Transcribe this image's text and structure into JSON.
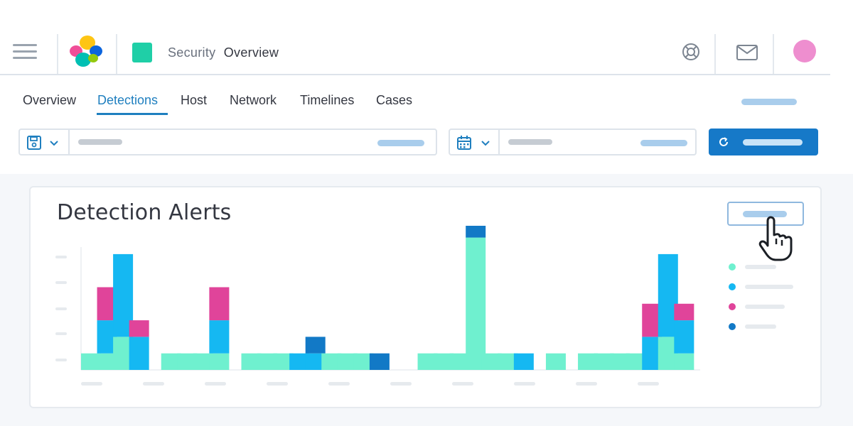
{
  "header": {
    "menu_icon": "hamburger-menu-icon",
    "logo_icon": "elastic-logo-icon",
    "space_color": "#1fcfa7",
    "breadcrumb": {
      "app": "Security",
      "current": "Overview"
    },
    "icons": [
      "help-lifebuoy-icon",
      "mail-icon"
    ],
    "avatar_color": "#ee8ecf"
  },
  "tabs": [
    {
      "label": "Overview",
      "active": false
    },
    {
      "label": "Detections",
      "active": true
    },
    {
      "label": "Host",
      "active": false
    },
    {
      "label": "Network",
      "active": false
    },
    {
      "label": "Timelines",
      "active": false
    },
    {
      "label": "Cases",
      "active": false
    }
  ],
  "search_bar": {
    "left_icon": "saved-query-disk-icon",
    "chevron_icon": "chevron-down-icon"
  },
  "date_picker": {
    "icon": "calendar-icon",
    "chevron_icon": "chevron-down-icon"
  },
  "refresh_button": {
    "icon": "refresh-icon",
    "color": "#1679c8"
  },
  "panel": {
    "title": "Detection Alerts",
    "cursor_icon": "hand-pointer-icon"
  },
  "chart_data": {
    "type": "bar",
    "stacked": true,
    "series_colors": [
      "#6ff0cf",
      "#15b8f2",
      "#e0449a",
      "#1279c6"
    ],
    "stacks": [
      [
        1,
        0,
        0,
        0
      ],
      [
        1,
        2,
        2,
        0
      ],
      [
        2,
        5,
        0,
        0
      ],
      [
        0,
        2,
        1,
        0
      ],
      [
        0,
        0,
        0,
        0
      ],
      [
        1,
        0,
        0,
        0
      ],
      [
        1,
        0,
        0,
        0
      ],
      [
        1,
        0,
        0,
        0
      ],
      [
        1,
        2,
        2,
        0
      ],
      [
        0,
        0,
        0,
        0
      ],
      [
        1,
        0,
        0,
        0
      ],
      [
        1,
        0,
        0,
        0
      ],
      [
        1,
        0,
        0,
        0
      ],
      [
        0,
        1,
        0,
        0
      ],
      [
        0,
        1,
        0,
        1
      ],
      [
        1,
        0,
        0,
        0
      ],
      [
        1,
        0,
        0,
        0
      ],
      [
        1,
        0,
        0,
        0
      ],
      [
        0,
        0,
        0,
        1
      ],
      [
        0,
        0,
        0,
        0
      ],
      [
        0,
        0,
        0,
        0
      ],
      [
        1,
        0,
        0,
        0
      ],
      [
        1,
        0,
        0,
        0
      ],
      [
        1,
        0,
        0,
        0
      ],
      [
        8,
        0,
        0,
        1
      ],
      [
        1,
        0,
        0,
        0
      ],
      [
        1,
        0,
        0,
        0
      ],
      [
        0,
        1,
        0,
        0
      ],
      [
        0,
        0,
        0,
        0
      ],
      [
        1,
        0,
        0,
        0
      ],
      [
        0,
        0,
        0,
        0
      ],
      [
        1,
        0,
        0,
        0
      ],
      [
        1,
        0,
        0,
        0
      ],
      [
        1,
        0,
        0,
        0
      ],
      [
        1,
        0,
        0,
        0
      ],
      [
        0,
        2,
        2,
        0
      ],
      [
        2,
        5,
        0,
        0
      ],
      [
        1,
        2,
        1,
        0
      ]
    ],
    "legend_placement": "right"
  }
}
